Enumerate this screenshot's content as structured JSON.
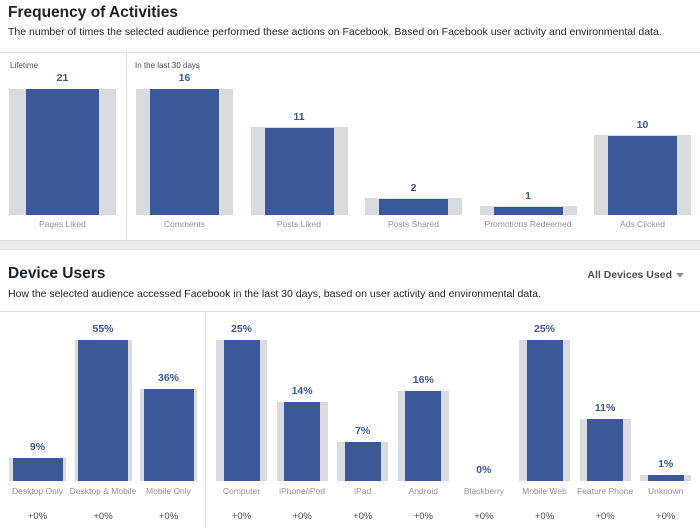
{
  "frequency": {
    "title": "Frequency of Activities",
    "subtitle": "The number of times the selected audience performed these actions on Facebook. Based on Facebook user activity and environmental data.",
    "lifetime_label": "Lifetime",
    "recent_label": "In the last 30 days"
  },
  "devices": {
    "title": "Device Users",
    "subtitle": "How the selected audience accessed Facebook in the last 30 days, based on user activity and environmental data.",
    "dropdown_label": "All Devices Used"
  },
  "colors": {
    "bar": "#3b5998",
    "benchmark": "#d8dbdf"
  },
  "chart_data": [
    {
      "type": "bar",
      "group": "Lifetime",
      "categories": [
        "Pages Liked"
      ],
      "values": [
        21
      ],
      "value_labels": [
        "21"
      ],
      "benchmark_level": [
        1.0
      ]
    },
    {
      "type": "bar",
      "group": "In the last 30 days",
      "categories": [
        "Comments",
        "Posts Liked",
        "Posts Shared",
        "Promotions Redeemed",
        "Ads Clicked"
      ],
      "values": [
        16,
        11,
        2,
        1,
        10
      ],
      "value_labels": [
        "16",
        "11",
        "2",
        "1",
        "10"
      ],
      "benchmark_level": [
        1.0,
        1.0,
        1.0,
        1.0,
        1.0
      ]
    },
    {
      "type": "bar",
      "categories": [
        "Desktop Only",
        "Desktop & Mobile",
        "Mobile Only"
      ],
      "values": [
        9,
        55,
        36
      ],
      "value_labels": [
        "9%",
        "55%",
        "36%"
      ],
      "deltas": [
        "+0%",
        "+0%",
        "+0%"
      ],
      "benchmark_level": [
        9,
        55,
        36
      ]
    },
    {
      "type": "bar",
      "categories": [
        "Computer",
        "iPhone/iPod",
        "iPad",
        "Android",
        "Blackberry",
        "Mobile Web",
        "Feature Phone",
        "Unknown"
      ],
      "values": [
        25,
        14,
        7,
        16,
        0,
        25,
        11,
        1
      ],
      "value_labels": [
        "25%",
        "14%",
        "7%",
        "16%",
        "0%",
        "25%",
        "11%",
        "1%"
      ],
      "deltas": [
        "+0%",
        "+0%",
        "+0%",
        "+0%",
        "+0%",
        "+0%",
        "+0%",
        "+0%"
      ],
      "benchmark_level": [
        25,
        14,
        7,
        16,
        0,
        25,
        11,
        1
      ]
    }
  ]
}
